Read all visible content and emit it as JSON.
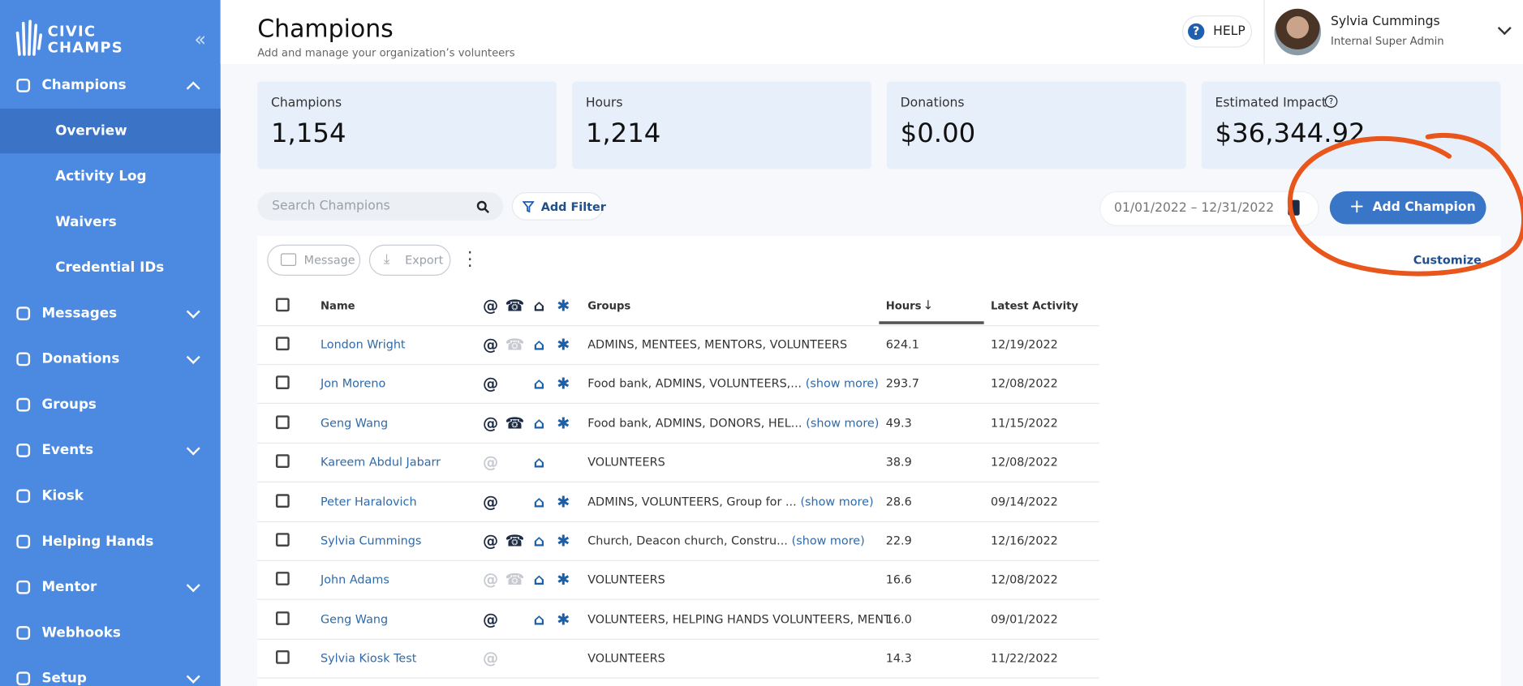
{
  "brand": {
    "line1": "CIVIC",
    "line2": "CHAMPS"
  },
  "sidebar": {
    "items": [
      {
        "label": "Champions",
        "chevron": "up"
      },
      {
        "label": "Overview",
        "sub": true,
        "selected": true
      },
      {
        "label": "Activity Log",
        "sub": true
      },
      {
        "label": "Waivers",
        "sub": true
      },
      {
        "label": "Credential IDs",
        "sub": true
      },
      {
        "label": "Messages",
        "chevron": "down"
      },
      {
        "label": "Donations",
        "chevron": "down"
      },
      {
        "label": "Groups"
      },
      {
        "label": "Events",
        "chevron": "down"
      },
      {
        "label": "Kiosk"
      },
      {
        "label": "Helping Hands"
      },
      {
        "label": "Mentor",
        "chevron": "down"
      },
      {
        "label": "Webhooks"
      },
      {
        "label": "Setup",
        "chevron": "down"
      }
    ]
  },
  "header": {
    "title": "Champions",
    "subtitle": "Add and manage your organization’s volunteers",
    "help": "HELP",
    "user_name": "Sylvia Cummings",
    "user_role": "Internal Super Admin"
  },
  "stats": [
    {
      "label": "Champions",
      "value": "1,154"
    },
    {
      "label": "Hours",
      "value": "1,214"
    },
    {
      "label": "Donations",
      "value": "$0.00"
    },
    {
      "label": "Estimated Impact",
      "value": "$36,344.92",
      "info": true
    }
  ],
  "toolbar": {
    "search_placeholder": "Search Champions",
    "add_filter": "Add Filter",
    "date_range": "01/01/2022 – 12/31/2022",
    "add_champion": "Add Champion",
    "message": "Message",
    "export": "Export",
    "customize": "Customize"
  },
  "table": {
    "columns": {
      "name": "Name",
      "groups": "Groups",
      "hours": "Hours",
      "latest": "Latest Activity"
    },
    "show_more": "(show more)",
    "rows": [
      {
        "name": "London Wright",
        "icons": [
          "on",
          "off",
          "on",
          "on"
        ],
        "groups": "ADMINS, MENTEES, MENTORS, VOLUNTEERS",
        "show_more": false,
        "hours": "624.1",
        "latest": "12/19/2022"
      },
      {
        "name": "Jon Moreno",
        "icons": [
          "on",
          "none",
          "on",
          "on"
        ],
        "groups": "Food bank, ADMINS, VOLUNTEERS,...",
        "show_more": true,
        "hours": "293.7",
        "latest": "12/08/2022"
      },
      {
        "name": "Geng Wang",
        "icons": [
          "on",
          "on",
          "on",
          "on"
        ],
        "groups": "Food bank, ADMINS, DONORS, HEL...",
        "show_more": true,
        "hours": "49.3",
        "latest": "11/15/2022"
      },
      {
        "name": "Kareem Abdul Jabarr",
        "icons": [
          "off",
          "none",
          "on",
          "none"
        ],
        "groups": "VOLUNTEERS",
        "show_more": false,
        "hours": "38.9",
        "latest": "12/08/2022"
      },
      {
        "name": "Peter Haralovich",
        "icons": [
          "on",
          "none",
          "on",
          "on"
        ],
        "groups": "ADMINS, VOLUNTEERS, Group for ...",
        "show_more": true,
        "hours": "28.6",
        "latest": "09/14/2022"
      },
      {
        "name": "Sylvia Cummings",
        "icons": [
          "on",
          "on",
          "on",
          "on"
        ],
        "groups": "Church, Deacon church, Constru...",
        "show_more": true,
        "hours": "22.9",
        "latest": "12/16/2022"
      },
      {
        "name": "John Adams",
        "icons": [
          "off",
          "off",
          "on",
          "on"
        ],
        "groups": "VOLUNTEERS",
        "show_more": false,
        "hours": "16.6",
        "latest": "12/08/2022"
      },
      {
        "name": "Geng Wang",
        "icons": [
          "on",
          "none",
          "on",
          "on"
        ],
        "groups": "VOLUNTEERS, HELPING HANDS VOLUNTEERS, MENT",
        "show_more": false,
        "hours": "16.0",
        "latest": "09/01/2022"
      },
      {
        "name": "Sylvia Kiosk Test",
        "icons": [
          "off",
          "none",
          "none",
          "none"
        ],
        "groups": "VOLUNTEERS",
        "show_more": false,
        "hours": "14.3",
        "latest": "11/22/2022"
      }
    ]
  }
}
